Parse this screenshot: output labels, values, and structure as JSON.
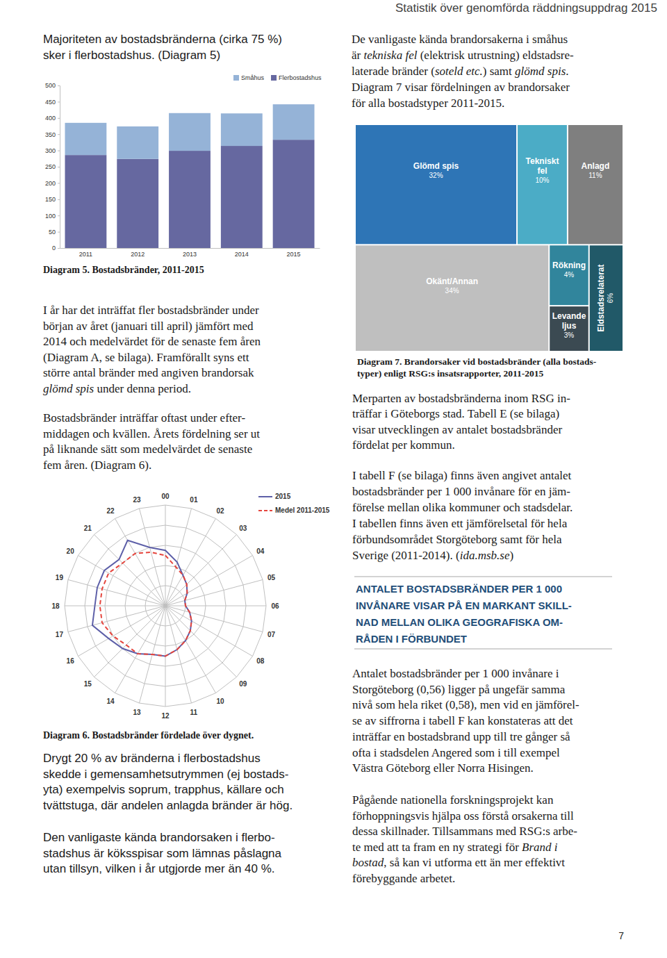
{
  "document": {
    "header": "Statistik över genomförda räddningsuppdrag 2015",
    "intro": [
      "Majoriteten av bostadsbränderna (cirka 75 %)",
      "sker i flerbostadshus. (Diagram 5)"
    ],
    "diagram_5_caption": [
      "Diagram 5. Bostadsbränder, 2011-2015"
    ],
    "paragraph_early_year": [
      "I år har det inträffat fler bostadsbränder under",
      "början av året (januari till april) jämfört med",
      "2014 och medelvärdet för de senaste fem åren",
      "(Diagram A, se bilaga). Framförallt syns ett",
      "större antal bränder med angiven brandorsak",
      [
        {
          "em": "glömd spis"
        },
        " under denna period."
      ]
    ],
    "paragraph_time_of_day": [
      "Bostadsbränder inträffar oftast under efter-",
      "middagen och kvällen. Årets fördelning ser ut",
      "på liknande sätt som medelvärdet de senaste",
      "fem åren. (Diagram 6)."
    ],
    "diagram_6_caption": [
      "Diagram 6. Bostadsbränder fördelade över dygnet."
    ],
    "paragraph_common_areas": [
      "Drygt 20 % av bränderna i flerbostadshus",
      "skedde i gemensamhetsutrymmen (ej bostads-",
      "yta) exempelvis soprum, trapphus, källare och",
      "tvättstuga, där andelen anlagda bränder är hög."
    ],
    "paragraph_kitchen": [
      "Den vanligaste kända brandorsaken i flerbo-",
      "stadshus är köksspisar som lämnas påslagna",
      "utan tillsyn, vilken i år utgjorde mer än 40 %."
    ],
    "paragraph_causes": [
      "De vanligaste kända brandorsakerna i småhus",
      [
        "är ",
        {
          "em": "tekniska fel"
        },
        " (elektrisk utrustning) eldstadsre-"
      ],
      [
        "laterade bränder (",
        {
          "em": "soteld etc."
        },
        ") samt ",
        {
          "em": "glömd spis"
        },
        "."
      ],
      "Diagram 7 visar fördelningen av brandorsaker",
      "för alla bostadstyper 2011-2015."
    ],
    "diagram_7_caption": [
      "Diagram 7. Brandorsaker vid bostadsbränder (alla bostads-",
      "typer) enligt RSG:s insatsrapporter, 2011-2015"
    ],
    "paragraph_rsg": [
      "Merparten av bostadsbränderna inom RSG in-",
      "träffar i Göteborgs stad. Tabell E (se bilaga)",
      "visar utvecklingen av antalet bostadsbränder",
      "fördelat per kommun."
    ],
    "paragraph_table_f": [
      "I tabell F (se bilaga) finns även angivet antalet",
      "bostadsbränder per 1 000 invånare för en jäm-",
      "förelse mellan olika kommuner och stadsdelar.",
      "I tabellen finns även ett jämförelsetal för hela",
      "förbundsområdet Storgöteborg samt för hela",
      [
        "Sverige (2011-2014). (",
        {
          "em": "ida.msb.se"
        },
        ")"
      ]
    ],
    "callout": [
      "ANTALET BOSTADSBRÄNDER PER 1 000",
      "INVÅNARE VISAR PÅ EN MARKANT SKILL-",
      "NAD MELLAN OLIKA GEOGRAFISKA OM-",
      "RÅDEN I FÖRBUNDET"
    ],
    "paragraph_comparison": [
      "Antalet bostadsbränder per 1 000 invånare i",
      "Storgöteborg (0,56) ligger på ungefär samma",
      "nivå som hela riket (0,58), men vid en jämförel-",
      "se av siffrorna i tabell F kan konstateras att det",
      "inträffar en bostadsbrand upp till tre gånger så",
      "ofta i stadsdelen Angered som i till exempel",
      "Västra Göteborg eller Norra Hisingen."
    ],
    "paragraph_research": [
      "Pågående nationella forskningsprojekt kan",
      "förhoppningsvis hjälpa oss förstå orsakerna till",
      "dessa skillnader. Tillsammans med RSG:s arbe-",
      [
        "te med att ta fram en ny strategi för ",
        {
          "em": "Brand i"
        }
      ],
      [
        {
          "em": "bostad"
        },
        ", så kan vi utforma ett än mer effektivt"
      ],
      "förebyggande arbetet."
    ],
    "page_number": "7"
  },
  "chart_data": [
    {
      "type": "bar",
      "stacked": true,
      "categories": [
        "2011",
        "2012",
        "2013",
        "2014",
        "2015"
      ],
      "series": [
        {
          "name": "Flerbostadshus",
          "color": "#6668a0",
          "values": [
            286,
            274,
            299,
            314,
            333
          ]
        },
        {
          "name": "Småhus",
          "color": "#95b3d7",
          "values": [
            99,
            100,
            116,
            100,
            109
          ]
        }
      ],
      "ylim": [
        0,
        500
      ],
      "yticks": [
        0,
        50,
        100,
        150,
        200,
        250,
        300,
        350,
        400,
        450,
        500
      ],
      "grid": false,
      "legend": "top-right"
    },
    {
      "type": "radar",
      "categories": [
        "00",
        "01",
        "02",
        "03",
        "04",
        "05",
        "06",
        "07",
        "08",
        "09",
        "10",
        "11",
        "12",
        "13",
        "14",
        "15",
        "16",
        "17",
        "18",
        "19",
        "20",
        "21",
        "22",
        "23"
      ],
      "series": [
        {
          "name": "2015",
          "color": "#5d5fa8",
          "line_style": "solid",
          "values": [
            5.5,
            4.5,
            3.5,
            3,
            2.5,
            2,
            2,
            2.5,
            3,
            3.5,
            4,
            4.5,
            5,
            5,
            5.5,
            6,
            6.5,
            7.5,
            7,
            7,
            7,
            6.5,
            7.5,
            6
          ]
        },
        {
          "name": "Medel 2011-2015",
          "color": "#e5453d",
          "line_style": "dashed",
          "values": [
            5,
            4,
            3.5,
            3,
            2.5,
            2,
            2,
            2.5,
            3,
            3.5,
            4,
            4.5,
            5,
            5,
            5.5,
            5.5,
            6,
            6.5,
            6.5,
            6.5,
            6.5,
            6,
            6,
            5.5
          ]
        }
      ],
      "ylim": [
        0,
        10
      ],
      "yticks": [
        0,
        2,
        4,
        6,
        8,
        10
      ],
      "grid": true,
      "tick_labels": "x",
      "legend": "top-right"
    },
    {
      "type": "treemap",
      "categories": [
        "Glömd spis",
        "Tekniskt fel",
        "Anlagd",
        "Okänt/Annan",
        "Rökning",
        "Levande ljus",
        "Eldstadsrelaterat"
      ],
      "values": [
        32,
        10,
        11,
        34,
        4,
        3,
        6
      ],
      "value_labels": [
        "32%",
        "10%",
        "11%",
        "34%",
        "4%",
        "3%",
        "6%"
      ],
      "colors": [
        "#2e75b6",
        "#4bacc6",
        "#7f7f7f",
        "#bfbfbf",
        "#31859c",
        "#3b4a52",
        "#215968"
      ],
      "data_labels": true
    }
  ]
}
